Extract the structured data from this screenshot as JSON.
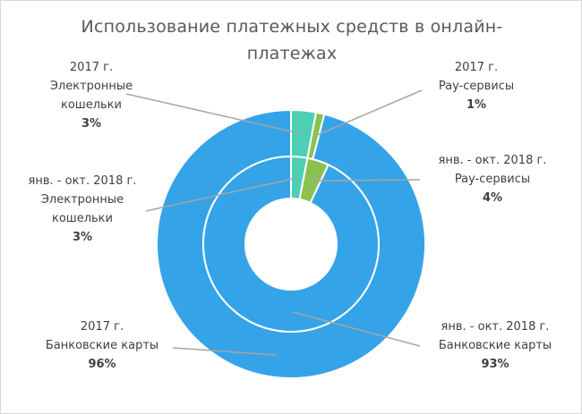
{
  "chart_data": {
    "type": "pie",
    "title": "Использование платежных средств в онлайн-платежах",
    "title_lines": [
      "Использование платежных средств в онлайн-",
      "платежах"
    ],
    "series": [
      {
        "name": "2017 г.",
        "ring": "outer",
        "categories": [
          "Электронные кошельки",
          "Pay-сервисы",
          "Банковские карты"
        ],
        "values": [
          3,
          1,
          96
        ],
        "value_labels": [
          "3%",
          "1%",
          "96%"
        ]
      },
      {
        "name": "янв. - окт. 2018 г.",
        "ring": "inner",
        "categories": [
          "Электронные кошельки",
          "Pay-сервисы",
          "Банковские карты"
        ],
        "values": [
          3,
          4,
          93
        ],
        "value_labels": [
          "3%",
          "4%",
          "93%"
        ]
      }
    ],
    "colors": [
      "#4dcfb5",
      "#8cc152",
      "#35a3e8"
    ],
    "labels": {
      "outer_wallets": {
        "period": "2017 г.",
        "lines": [
          "Электронные",
          "кошельки"
        ],
        "value": "3%"
      },
      "outer_pay": {
        "period": "2017 г.",
        "lines": [
          "Pay-сервисы"
        ],
        "value": "1%"
      },
      "inner_wallets": {
        "period": "янв. - окт. 2018 г.",
        "lines": [
          "Электронные",
          "кошельки"
        ],
        "value": "3%"
      },
      "inner_pay": {
        "period": "янв. - окт. 2018 г.",
        "lines": [
          "Pay-сервисы"
        ],
        "value": "4%"
      },
      "outer_cards": {
        "period": "2017 г.",
        "lines": [
          "Банковские карты"
        ],
        "value": "96%"
      },
      "inner_cards": {
        "period": "янв. - окт. 2018 г.",
        "lines": [
          "Банковские карты"
        ],
        "value": "93%"
      }
    }
  }
}
